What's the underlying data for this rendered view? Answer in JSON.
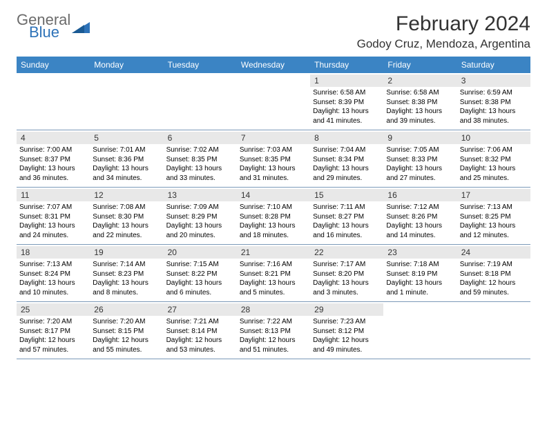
{
  "logo": {
    "line1": "General",
    "line2": "Blue"
  },
  "title": "February 2024",
  "location": "Godoy Cruz, Mendoza, Argentina",
  "colors": {
    "header_bg": "#3b84c4",
    "header_text": "#ffffff",
    "daynum_bg": "#e8e8e8",
    "week_border": "#7a99b8",
    "logo_gray": "#6b6b6b",
    "logo_blue": "#2d72b8",
    "title_color": "#333333"
  },
  "dayNames": [
    "Sunday",
    "Monday",
    "Tuesday",
    "Wednesday",
    "Thursday",
    "Friday",
    "Saturday"
  ],
  "weeks": [
    [
      {
        "day": "",
        "lines": []
      },
      {
        "day": "",
        "lines": []
      },
      {
        "day": "",
        "lines": []
      },
      {
        "day": "",
        "lines": []
      },
      {
        "day": "1",
        "lines": [
          "Sunrise: 6:58 AM",
          "Sunset: 8:39 PM",
          "Daylight: 13 hours",
          "and 41 minutes."
        ]
      },
      {
        "day": "2",
        "lines": [
          "Sunrise: 6:58 AM",
          "Sunset: 8:38 PM",
          "Daylight: 13 hours",
          "and 39 minutes."
        ]
      },
      {
        "day": "3",
        "lines": [
          "Sunrise: 6:59 AM",
          "Sunset: 8:38 PM",
          "Daylight: 13 hours",
          "and 38 minutes."
        ]
      }
    ],
    [
      {
        "day": "4",
        "lines": [
          "Sunrise: 7:00 AM",
          "Sunset: 8:37 PM",
          "Daylight: 13 hours",
          "and 36 minutes."
        ]
      },
      {
        "day": "5",
        "lines": [
          "Sunrise: 7:01 AM",
          "Sunset: 8:36 PM",
          "Daylight: 13 hours",
          "and 34 minutes."
        ]
      },
      {
        "day": "6",
        "lines": [
          "Sunrise: 7:02 AM",
          "Sunset: 8:35 PM",
          "Daylight: 13 hours",
          "and 33 minutes."
        ]
      },
      {
        "day": "7",
        "lines": [
          "Sunrise: 7:03 AM",
          "Sunset: 8:35 PM",
          "Daylight: 13 hours",
          "and 31 minutes."
        ]
      },
      {
        "day": "8",
        "lines": [
          "Sunrise: 7:04 AM",
          "Sunset: 8:34 PM",
          "Daylight: 13 hours",
          "and 29 minutes."
        ]
      },
      {
        "day": "9",
        "lines": [
          "Sunrise: 7:05 AM",
          "Sunset: 8:33 PM",
          "Daylight: 13 hours",
          "and 27 minutes."
        ]
      },
      {
        "day": "10",
        "lines": [
          "Sunrise: 7:06 AM",
          "Sunset: 8:32 PM",
          "Daylight: 13 hours",
          "and 25 minutes."
        ]
      }
    ],
    [
      {
        "day": "11",
        "lines": [
          "Sunrise: 7:07 AM",
          "Sunset: 8:31 PM",
          "Daylight: 13 hours",
          "and 24 minutes."
        ]
      },
      {
        "day": "12",
        "lines": [
          "Sunrise: 7:08 AM",
          "Sunset: 8:30 PM",
          "Daylight: 13 hours",
          "and 22 minutes."
        ]
      },
      {
        "day": "13",
        "lines": [
          "Sunrise: 7:09 AM",
          "Sunset: 8:29 PM",
          "Daylight: 13 hours",
          "and 20 minutes."
        ]
      },
      {
        "day": "14",
        "lines": [
          "Sunrise: 7:10 AM",
          "Sunset: 8:28 PM",
          "Daylight: 13 hours",
          "and 18 minutes."
        ]
      },
      {
        "day": "15",
        "lines": [
          "Sunrise: 7:11 AM",
          "Sunset: 8:27 PM",
          "Daylight: 13 hours",
          "and 16 minutes."
        ]
      },
      {
        "day": "16",
        "lines": [
          "Sunrise: 7:12 AM",
          "Sunset: 8:26 PM",
          "Daylight: 13 hours",
          "and 14 minutes."
        ]
      },
      {
        "day": "17",
        "lines": [
          "Sunrise: 7:13 AM",
          "Sunset: 8:25 PM",
          "Daylight: 13 hours",
          "and 12 minutes."
        ]
      }
    ],
    [
      {
        "day": "18",
        "lines": [
          "Sunrise: 7:13 AM",
          "Sunset: 8:24 PM",
          "Daylight: 13 hours",
          "and 10 minutes."
        ]
      },
      {
        "day": "19",
        "lines": [
          "Sunrise: 7:14 AM",
          "Sunset: 8:23 PM",
          "Daylight: 13 hours",
          "and 8 minutes."
        ]
      },
      {
        "day": "20",
        "lines": [
          "Sunrise: 7:15 AM",
          "Sunset: 8:22 PM",
          "Daylight: 13 hours",
          "and 6 minutes."
        ]
      },
      {
        "day": "21",
        "lines": [
          "Sunrise: 7:16 AM",
          "Sunset: 8:21 PM",
          "Daylight: 13 hours",
          "and 5 minutes."
        ]
      },
      {
        "day": "22",
        "lines": [
          "Sunrise: 7:17 AM",
          "Sunset: 8:20 PM",
          "Daylight: 13 hours",
          "and 3 minutes."
        ]
      },
      {
        "day": "23",
        "lines": [
          "Sunrise: 7:18 AM",
          "Sunset: 8:19 PM",
          "Daylight: 13 hours",
          "and 1 minute."
        ]
      },
      {
        "day": "24",
        "lines": [
          "Sunrise: 7:19 AM",
          "Sunset: 8:18 PM",
          "Daylight: 12 hours",
          "and 59 minutes."
        ]
      }
    ],
    [
      {
        "day": "25",
        "lines": [
          "Sunrise: 7:20 AM",
          "Sunset: 8:17 PM",
          "Daylight: 12 hours",
          "and 57 minutes."
        ]
      },
      {
        "day": "26",
        "lines": [
          "Sunrise: 7:20 AM",
          "Sunset: 8:15 PM",
          "Daylight: 12 hours",
          "and 55 minutes."
        ]
      },
      {
        "day": "27",
        "lines": [
          "Sunrise: 7:21 AM",
          "Sunset: 8:14 PM",
          "Daylight: 12 hours",
          "and 53 minutes."
        ]
      },
      {
        "day": "28",
        "lines": [
          "Sunrise: 7:22 AM",
          "Sunset: 8:13 PM",
          "Daylight: 12 hours",
          "and 51 minutes."
        ]
      },
      {
        "day": "29",
        "lines": [
          "Sunrise: 7:23 AM",
          "Sunset: 8:12 PM",
          "Daylight: 12 hours",
          "and 49 minutes."
        ]
      },
      {
        "day": "",
        "lines": []
      },
      {
        "day": "",
        "lines": []
      }
    ]
  ]
}
